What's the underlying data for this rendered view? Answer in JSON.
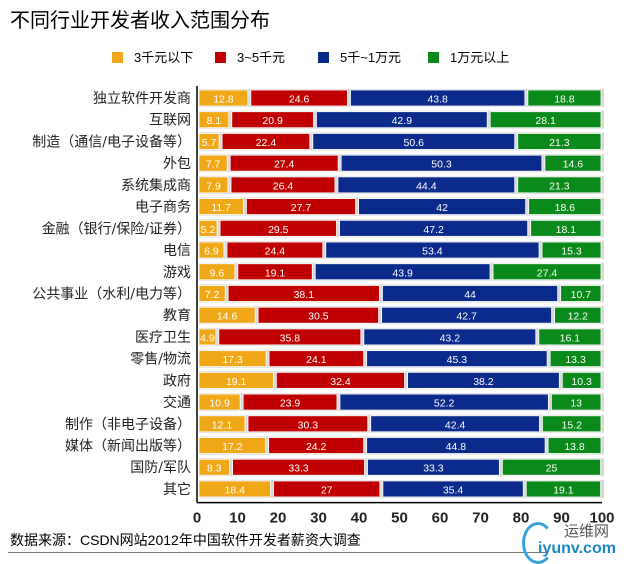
{
  "chart_data": {
    "type": "bar",
    "orientation": "horizontal",
    "stacked": true,
    "title": "不同行业开发者收入范围分布",
    "xlabel": "",
    "ylabel": "",
    "xlim": [
      0,
      100
    ],
    "xticks": [
      "0",
      "10",
      "20",
      "30",
      "40",
      "50",
      "60",
      "70",
      "80",
      "90",
      "100"
    ],
    "legend_position": "top",
    "categories": [
      "独立软件开发商",
      "互联网",
      "制造（通信/电子设备等）",
      "外包",
      "系统集成商",
      "电子商务",
      "金融（银行/保险/证券）",
      "电信",
      "游戏",
      "公共事业（水利/电力等）",
      "教育",
      "医疗卫生",
      "零售/物流",
      "政府",
      "交通",
      "制作（非电子设备）",
      "媒体（新闻出版等）",
      "国防/军队",
      "其它"
    ],
    "series": [
      {
        "name": "3千元以下",
        "color": "#f0a818",
        "values": [
          12.8,
          8.1,
          5.7,
          7.7,
          7.9,
          11.7,
          5.2,
          6.9,
          9.6,
          7.2,
          14.6,
          4.9,
          17.3,
          19.1,
          10.9,
          12.1,
          17.2,
          8.3,
          18.4
        ]
      },
      {
        "name": "3~5千元",
        "color": "#c00000",
        "values": [
          24.6,
          20.9,
          22.4,
          27.4,
          26.4,
          27.7,
          29.5,
          24.4,
          19.1,
          38.1,
          30.5,
          35.8,
          24.1,
          32.4,
          23.9,
          30.3,
          24.2,
          33.3,
          27
        ]
      },
      {
        "name": "5千~1万元",
        "color": "#0a2a8c",
        "values": [
          43.8,
          42.9,
          50.6,
          50.3,
          44.4,
          42,
          47.2,
          53.4,
          43.9,
          44,
          42.7,
          43.2,
          45.3,
          38.2,
          52.2,
          42.4,
          44.8,
          33.3,
          35.4
        ]
      },
      {
        "name": "1万元以上",
        "color": "#0a8a1a",
        "values": [
          18.8,
          28.1,
          21.3,
          14.6,
          21.3,
          18.6,
          18.1,
          15.3,
          27.4,
          10.7,
          12.2,
          16.1,
          13.3,
          10.3,
          13,
          15.2,
          13.8,
          25,
          19.1
        ]
      }
    ]
  },
  "source": "数据来源：CSDN网站2012年中国软件开发者薪资大调查",
  "watermark": {
    "line1": "运维网",
    "line2": "iyunv.com"
  }
}
